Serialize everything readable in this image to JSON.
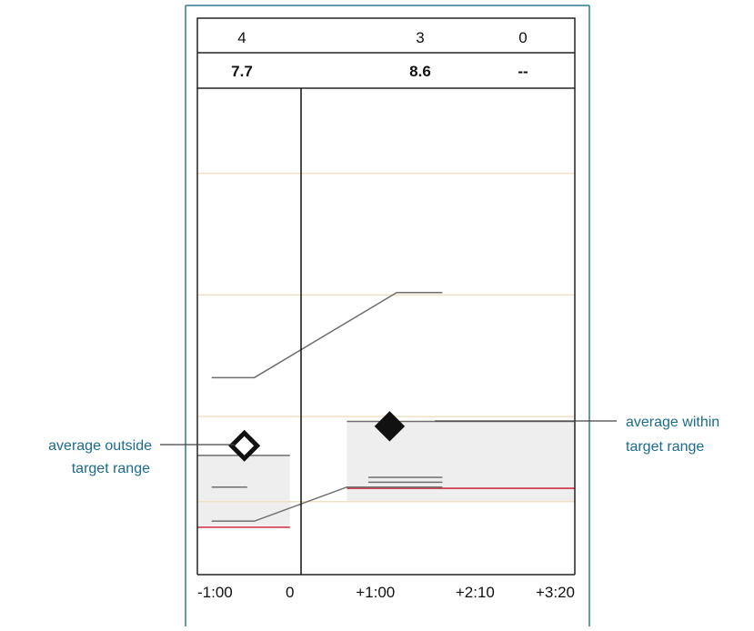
{
  "chart_data": {
    "type": "line",
    "header": {
      "counts": [
        "4",
        "3",
        "0"
      ],
      "averages": [
        "7.7",
        "8.6",
        "--"
      ]
    },
    "x_ticks": [
      "-1:00",
      "0",
      "+1:00",
      "+2:10",
      "+3:20"
    ],
    "x_tick_values": [
      -60,
      0,
      60,
      130,
      200
    ],
    "xlim": [
      -65,
      200
    ],
    "ylim": [
      0,
      20
    ],
    "reference_lines_y": [
      3.0,
      6.5,
      11.5,
      16.5
    ],
    "target_ranges": [
      {
        "x_start": -65,
        "x_end": 0,
        "y_low": 2.0,
        "y_high": 4.9
      },
      {
        "x_start": 40,
        "x_end": 200,
        "y_low": 3.0,
        "y_high": 6.3
      }
    ],
    "lower_limit_lines": [
      {
        "x": [
          -65,
          0
        ],
        "y": [
          1.95,
          1.95
        ]
      },
      {
        "x": [
          40,
          200
        ],
        "y": [
          3.55,
          3.55
        ]
      }
    ],
    "range_lines": [
      {
        "name": "upper",
        "x": [
          -55,
          -25,
          75,
          107
        ],
        "y": [
          8.1,
          8.1,
          11.6,
          11.6
        ]
      },
      {
        "name": "lower",
        "x": [
          -55,
          -25,
          40,
          75,
          107
        ],
        "y": [
          2.2,
          2.2,
          3.6,
          3.6,
          3.6
        ]
      },
      {
        "name": "short-left",
        "x": [
          -55,
          -30
        ],
        "y": [
          3.6,
          3.6
        ]
      },
      {
        "name": "short-right-1",
        "x": [
          55,
          107
        ],
        "y": [
          4.0,
          4.0
        ]
      },
      {
        "name": "short-right-2",
        "x": [
          55,
          107
        ],
        "y": [
          3.8,
          3.8
        ]
      },
      {
        "name": "target-top-right",
        "x": [
          40,
          200
        ],
        "y": [
          6.3,
          6.3
        ]
      },
      {
        "name": "target-top-left",
        "x": [
          -65,
          0
        ],
        "y": [
          4.9,
          4.9
        ]
      }
    ],
    "markers": [
      {
        "name": "average-outside",
        "x": -32,
        "y": 5.3,
        "filled": false
      },
      {
        "name": "average-within",
        "x": 70,
        "y": 6.1,
        "filled": true
      }
    ],
    "annotations": {
      "left": {
        "lines": [
          "average outside",
          "target range"
        ],
        "target": "average-outside"
      },
      "right": {
        "lines": [
          "average within",
          "target range"
        ],
        "target": "average-within"
      }
    },
    "colors": {
      "frame": "#2e7a94",
      "reference": "#efe1c6",
      "lower_limit": "#d2465a",
      "range_line": "#6e6e6e",
      "target_fill": "#eeeeee",
      "marker": "#111111",
      "annotation_text": "#1b6b8c"
    }
  }
}
